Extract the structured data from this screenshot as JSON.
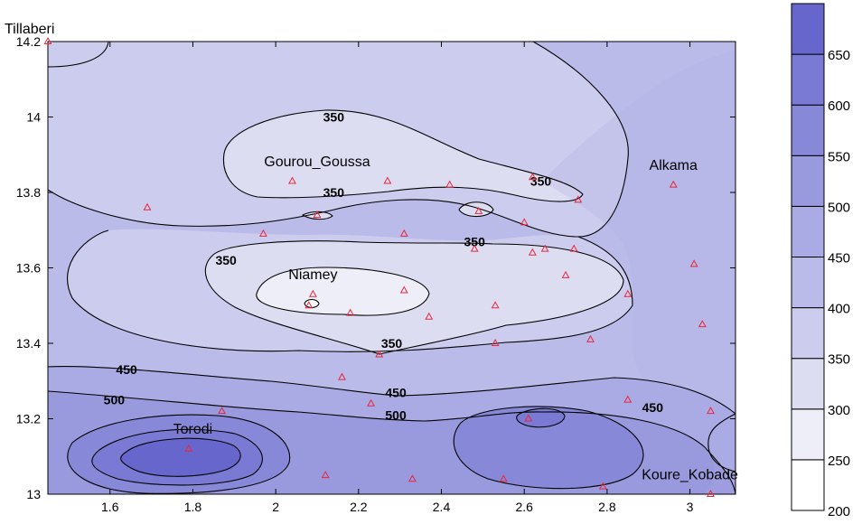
{
  "chart_data": {
    "type": "contour",
    "title": "",
    "xlabel": "",
    "ylabel": "",
    "xlim": [
      1.45,
      3.11
    ],
    "ylim": [
      13.0,
      14.2
    ],
    "x_ticks": [
      "1.6",
      "1.8",
      "2",
      "2.2",
      "2.4",
      "2.6",
      "2.8",
      "3"
    ],
    "y_ticks": [
      "13",
      "13.2",
      "13.4",
      "13.6",
      "13.8",
      "14",
      "14.2"
    ],
    "colorbar": {
      "levels": [
        "200",
        "250",
        "300",
        "350",
        "400",
        "450",
        "500",
        "550",
        "600",
        "650"
      ],
      "min": 200,
      "max": 700,
      "colors": [
        "#ffffff",
        "#eeeef8",
        "#ddddf2",
        "#ccccee",
        "#bbbbea",
        "#aaaae4",
        "#9999de",
        "#8888d8",
        "#7a7ad4",
        "#6666cc"
      ]
    },
    "contour_labels": [
      {
        "text": "350",
        "x": 2.14,
        "y": 14.0
      },
      {
        "text": "350",
        "x": 2.14,
        "y": 13.8
      },
      {
        "text": "350",
        "x": 2.64,
        "y": 13.83
      },
      {
        "text": "350",
        "x": 2.48,
        "y": 13.67
      },
      {
        "text": "350",
        "x": 1.88,
        "y": 13.62
      },
      {
        "text": "350",
        "x": 2.28,
        "y": 13.4
      },
      {
        "text": "450",
        "x": 1.64,
        "y": 13.33
      },
      {
        "text": "450",
        "x": 2.29,
        "y": 13.27
      },
      {
        "text": "450",
        "x": 2.91,
        "y": 13.23
      },
      {
        "text": "500",
        "x": 1.61,
        "y": 13.25
      },
      {
        "text": "500",
        "x": 2.29,
        "y": 13.21
      }
    ],
    "place_names": [
      {
        "name": "Tillaberi",
        "x": 1.46,
        "y": 14.24
      },
      {
        "name": "Gourou_Goussa",
        "x": 2.1,
        "y": 13.87
      },
      {
        "name": "Alkama",
        "x": 2.96,
        "y": 13.86
      },
      {
        "name": "Niamey",
        "x": 2.09,
        "y": 13.57
      },
      {
        "name": "Torodi",
        "x": 1.8,
        "y": 13.16
      },
      {
        "name": "Koure_Kobade",
        "x": 3.0,
        "y": 13.04
      }
    ],
    "stations": [
      [
        1.45,
        14.2
      ],
      [
        2.04,
        13.83
      ],
      [
        2.27,
        13.83
      ],
      [
        2.42,
        13.82
      ],
      [
        2.62,
        13.84
      ],
      [
        2.73,
        13.78
      ],
      [
        2.96,
        13.82
      ],
      [
        1.69,
        13.76
      ],
      [
        2.1,
        13.74
      ],
      [
        2.49,
        13.75
      ],
      [
        2.6,
        13.72
      ],
      [
        1.97,
        13.69
      ],
      [
        2.31,
        13.69
      ],
      [
        2.48,
        13.65
      ],
      [
        2.62,
        13.64
      ],
      [
        2.65,
        13.65
      ],
      [
        2.72,
        13.65
      ],
      [
        3.01,
        13.61
      ],
      [
        2.7,
        13.58
      ],
      [
        2.31,
        13.54
      ],
      [
        2.85,
        13.53
      ],
      [
        2.09,
        13.53
      ],
      [
        2.08,
        13.5
      ],
      [
        2.53,
        13.5
      ],
      [
        2.18,
        13.48
      ],
      [
        2.37,
        13.47
      ],
      [
        3.03,
        13.45
      ],
      [
        2.76,
        13.41
      ],
      [
        2.53,
        13.4
      ],
      [
        2.25,
        13.37
      ],
      [
        2.16,
        13.31
      ],
      [
        2.23,
        13.24
      ],
      [
        1.87,
        13.22
      ],
      [
        2.85,
        13.25
      ],
      [
        3.05,
        13.22
      ],
      [
        2.61,
        13.2
      ],
      [
        1.79,
        13.12
      ],
      [
        2.12,
        13.05
      ],
      [
        2.33,
        13.04
      ],
      [
        2.55,
        13.04
      ],
      [
        2.79,
        13.02
      ],
      [
        3.05,
        13.0
      ]
    ]
  }
}
